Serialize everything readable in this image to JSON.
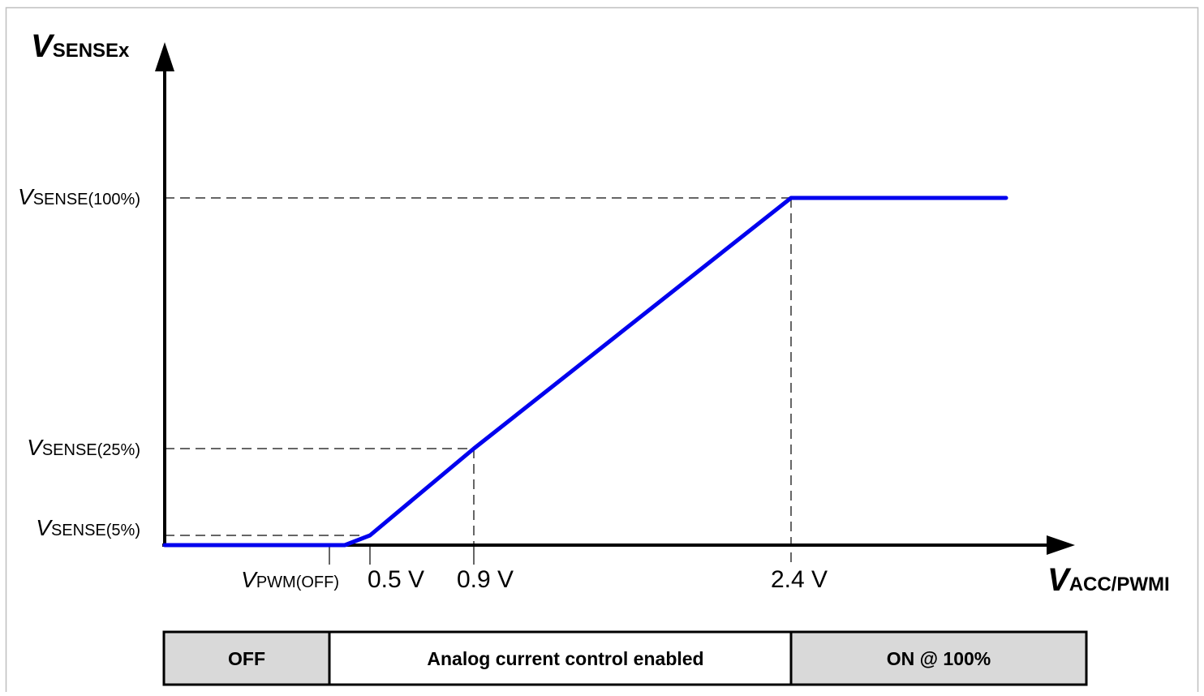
{
  "chart_data": {
    "type": "line",
    "title": "",
    "y_axis": {
      "symbol": "V",
      "subscript": "SENSEx"
    },
    "x_axis": {
      "symbol": "V",
      "subscript": "ACC/PWMI"
    },
    "y_levels": [
      {
        "key": "v100",
        "symbol": "V",
        "subscript": "SENSE(100%)",
        "value_pct": 100
      },
      {
        "key": "v25",
        "symbol": "V",
        "subscript": "SENSE(25%)",
        "value_pct": 25
      },
      {
        "key": "v5",
        "symbol": "V",
        "subscript": "SENSE(5%)",
        "value_pct": 5
      }
    ],
    "x_ticks": [
      {
        "key": "vpwm",
        "symbol": "V",
        "subscript": "PWM(OFF)",
        "value": 0.2
      },
      {
        "key": "x05",
        "label": "0.5 V",
        "value": 0.5
      },
      {
        "key": "x09",
        "label": "0.9 V",
        "value": 0.9
      },
      {
        "key": "x24",
        "label": "2.4 V",
        "value": 2.4
      }
    ],
    "series": [
      {
        "color": "#0000ee",
        "points": [
          [
            0.0,
            0
          ],
          [
            0.45,
            0
          ],
          [
            0.5,
            5
          ],
          [
            0.9,
            25
          ],
          [
            2.4,
            100
          ],
          [
            3.0,
            100
          ]
        ]
      }
    ],
    "bands": [
      {
        "key": "off",
        "label": "OFF",
        "from": 0.2,
        "to": 0.0,
        "fill": "#d9d9d9"
      },
      {
        "key": "analog",
        "label": "Analog current control enabled",
        "from": 0.2,
        "to": 2.4,
        "fill": "#ffffff"
      },
      {
        "key": "on",
        "label": "ON @ 100%",
        "from": 2.4,
        "to": 3.3,
        "fill": "#d9d9d9"
      }
    ]
  }
}
